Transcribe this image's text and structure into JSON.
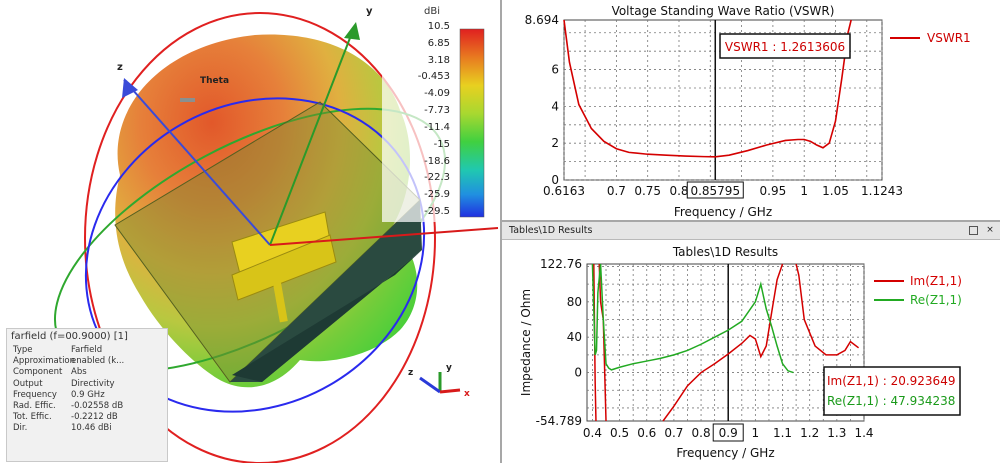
{
  "farfield": {
    "colorbar_unit": "dBi",
    "colorbar_values": [
      "10.5",
      "6.85",
      "3.18",
      "-0.453",
      "-4.09",
      "-7.73",
      "-11.4",
      "-15",
      "-18.6",
      "-22.3",
      "-25.9",
      "-29.5"
    ],
    "axis_labels": {
      "x": "x",
      "y": "y",
      "z": "z",
      "theta": "Theta"
    },
    "info": {
      "title": "farfield (f=00.9000) [1]",
      "rows": [
        {
          "k": "Type",
          "v": "Farfield"
        },
        {
          "k": "Approximation",
          "v": "enabled (k..."
        },
        {
          "k": "Component",
          "v": "Abs"
        },
        {
          "k": "Output",
          "v": "Directivity"
        },
        {
          "k": "Frequency",
          "v": "0.9 GHz"
        },
        {
          "k": "Rad. Effic.",
          "v": "-0.02558 dB"
        },
        {
          "k": "Tot. Effic.",
          "v": "-0.2212 dB"
        },
        {
          "k": "Dir.",
          "v": "10.46 dBi"
        }
      ]
    }
  },
  "window": {
    "title": "Tables\\1D Results",
    "close_label": "×"
  },
  "chart_data": [
    {
      "type": "line",
      "title": "Voltage Standing Wave Ratio (VSWR)",
      "xlabel": "Frequency / GHz",
      "ylabel": "",
      "xlim": [
        0.6163,
        1.1243
      ],
      "ylim": [
        0,
        8.694
      ],
      "x_ticks": [
        "0.6163",
        "0.7",
        "0.75",
        "0.8",
        "0.85795",
        "0.95",
        "1",
        "1.05",
        "1.1243"
      ],
      "y_ticks": [
        "8.694",
        "6",
        "4",
        "2",
        "0"
      ],
      "grid": true,
      "legend_position": "top-right",
      "marker": {
        "x": 0.85795,
        "label": "VSWR1 : 1.2613606"
      },
      "series": [
        {
          "name": "VSWR1",
          "color": "#d40000",
          "x": [
            0.72,
            0.7,
            0.68,
            0.66,
            0.64,
            0.62,
            0.6163
          ],
          "x_full": [
            0.615,
            0.625,
            0.64,
            0.66,
            0.68,
            0.7,
            0.72,
            0.75,
            0.78,
            0.81,
            0.84,
            0.858,
            0.88,
            0.91,
            0.94,
            0.97,
            0.99,
            1.0,
            1.01,
            1.02,
            1.03,
            1.04,
            1.05,
            1.06,
            1.07,
            1.075
          ],
          "y_full": [
            8.7,
            6.4,
            4.1,
            2.8,
            2.1,
            1.7,
            1.5,
            1.4,
            1.35,
            1.3,
            1.27,
            1.26,
            1.35,
            1.6,
            1.9,
            2.15,
            2.2,
            2.2,
            2.1,
            1.9,
            1.75,
            2.0,
            3.2,
            5.5,
            8.0,
            8.7
          ]
        }
      ]
    },
    {
      "type": "line",
      "title": "Tables\\1D Results",
      "xlabel": "Frequency / GHz",
      "ylabel": "Impedance / Ohm",
      "xlim": [
        0.38,
        1.4
      ],
      "ylim": [
        -54.789,
        122.76
      ],
      "x_ticks": [
        "0.4",
        "0.5",
        "0.6",
        "0.7",
        "0.8",
        "0.9",
        "1",
        "1.1",
        "1.2",
        "1.3",
        "1.4"
      ],
      "y_ticks": [
        "122.76",
        "80",
        "40",
        "0",
        "-54.789"
      ],
      "grid": true,
      "legend_position": "top-right",
      "marker": {
        "x": 0.9,
        "labels": [
          "Im(Z1,1) : 20.923649",
          "Re(Z1,1) : 47.934238"
        ]
      },
      "series": [
        {
          "name": "Im(Z1,1)",
          "color": "#d40000",
          "x": [
            0.405,
            0.41,
            0.413,
            0.42,
            0.425,
            0.43,
            0.44,
            0.45,
            null,
            0.66,
            0.7,
            0.75,
            0.8,
            0.85,
            0.9,
            0.95,
            0.98,
            1.0,
            1.02,
            1.04,
            1.06,
            1.08,
            1.1,
            1.11,
            1.12,
            null,
            1.15,
            1.16,
            1.18,
            1.22,
            1.26,
            1.3,
            1.33,
            1.35,
            1.38
          ],
          "y": [
            122.76,
            -10,
            -54.789,
            null,
            122.76,
            80,
            60,
            -54.789,
            null,
            -54.789,
            -38,
            -15,
            0,
            10,
            21,
            33,
            42,
            38,
            18,
            30,
            68,
            105,
            122.76,
            null,
            null,
            null,
            122.76,
            110,
            60,
            30,
            20,
            20,
            25,
            35,
            28
          ]
        },
        {
          "name": "Re(Z1,1)",
          "color": "#22aa22",
          "x": [
            0.4,
            0.41,
            0.415,
            0.42,
            0.43,
            0.44,
            0.45,
            0.46,
            0.47,
            0.5,
            0.55,
            0.6,
            0.65,
            0.7,
            0.75,
            0.8,
            0.85,
            0.9,
            0.95,
            1.0,
            1.02,
            1.04,
            1.06,
            1.08,
            1.1,
            1.12,
            1.14
          ],
          "y": [
            122.76,
            20,
            25,
            90,
            122.76,
            60,
            10,
            5,
            3,
            6,
            10,
            13,
            16,
            20,
            25,
            32,
            40,
            48,
            58,
            80,
            100,
            72,
            52,
            30,
            10,
            2,
            0
          ]
        }
      ]
    }
  ]
}
